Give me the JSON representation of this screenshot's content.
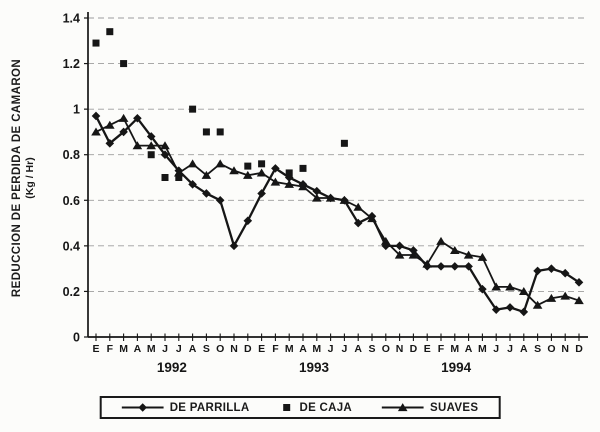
{
  "figure": {
    "y_axis_title_line1": "REDUCCION DE PERDIDA DE CAMARON",
    "y_axis_title_line2": "(Kg / Hr)"
  },
  "legend": [
    {
      "label": "DE PARRILLA",
      "marker": "diamond",
      "line": true
    },
    {
      "label": "DE CAJA",
      "marker": "square",
      "line": false
    },
    {
      "label": "SUAVES",
      "marker": "triangle",
      "line": true
    }
  ],
  "chart_data": {
    "type": "line",
    "title": "",
    "ylabel": "REDUCCION DE PERDIDA DE CAMARON (Kg / Hr)",
    "xlabel": "",
    "ylim": [
      0,
      1.4
    ],
    "grid": "horizontal-dashed",
    "legend_position": "bottom",
    "y_tick_labels": [
      "0",
      "0.2",
      "0.4",
      "0.6",
      "0.8",
      "1",
      "1.2",
      "1.4"
    ],
    "y_ticks": [
      0,
      0.2,
      0.4,
      0.6,
      0.8,
      1,
      1.2,
      1.4
    ],
    "month_letters": [
      "E",
      "F",
      "M",
      "A",
      "M",
      "J",
      "J",
      "A",
      "S",
      "O",
      "N",
      "D",
      "E",
      "F",
      "M",
      "A",
      "M",
      "J",
      "J",
      "A",
      "S",
      "O",
      "N",
      "D",
      "E",
      "F",
      "M",
      "A",
      "M",
      "J",
      "J",
      "A",
      "S",
      "O",
      "N",
      "D"
    ],
    "year_labels": [
      "1992",
      "1993",
      "1994"
    ],
    "series": [
      {
        "name": "DE PARRILLA",
        "marker": "diamond",
        "line": true,
        "color": "#161616",
        "values": [
          0.97,
          0.85,
          0.9,
          0.96,
          0.88,
          0.8,
          0.73,
          0.67,
          0.63,
          0.6,
          0.4,
          0.51,
          0.63,
          0.74,
          0.7,
          0.67,
          0.64,
          0.61,
          0.6,
          0.5,
          0.53,
          0.4,
          0.4,
          0.38,
          0.31,
          0.31,
          0.31,
          0.31,
          0.21,
          0.12,
          0.13,
          0.11,
          0.29,
          0.3,
          0.28,
          0.24
        ]
      },
      {
        "name": "DE CAJA",
        "marker": "square",
        "line": false,
        "color": "#161616",
        "values": [
          1.29,
          1.34,
          1.2,
          null,
          0.8,
          0.7,
          0.7,
          1.0,
          0.9,
          0.9,
          null,
          0.75,
          0.76,
          null,
          0.72,
          0.74,
          null,
          null,
          0.85,
          null,
          null,
          null,
          null,
          null,
          null,
          null,
          null,
          null,
          null,
          null,
          null,
          null,
          null,
          null,
          null,
          null
        ]
      },
      {
        "name": "SUAVES",
        "marker": "triangle",
        "line": true,
        "color": "#161616",
        "values": [
          0.9,
          0.93,
          0.96,
          0.84,
          0.84,
          0.84,
          0.72,
          0.76,
          0.71,
          0.76,
          0.73,
          0.71,
          0.72,
          0.68,
          0.67,
          0.66,
          0.61,
          0.61,
          0.6,
          0.57,
          0.52,
          0.42,
          0.36,
          0.36,
          0.32,
          0.42,
          0.38,
          0.36,
          0.35,
          0.22,
          0.22,
          0.2,
          0.14,
          0.17,
          0.18,
          0.16
        ]
      }
    ]
  }
}
